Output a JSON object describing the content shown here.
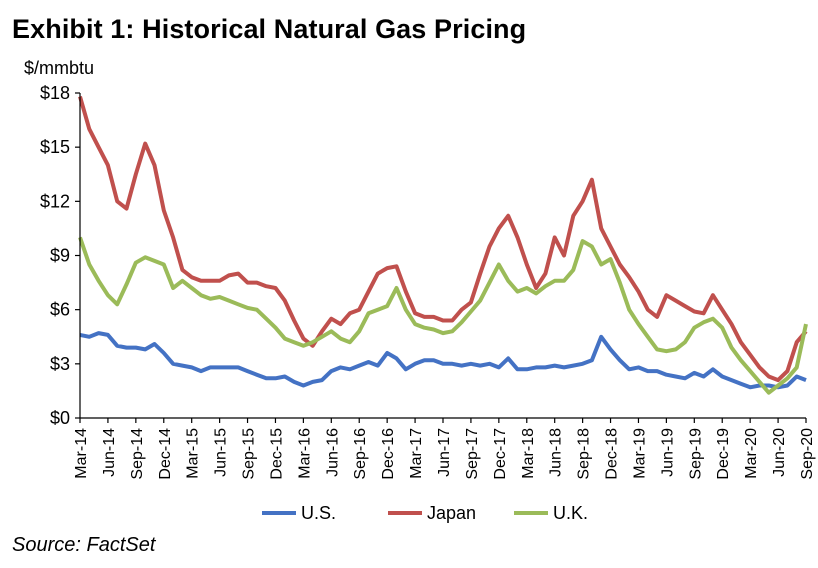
{
  "title": "Exhibit 1: Historical Natural Gas Pricing",
  "source": "Source: FactSet",
  "colors": {
    "us": "#4472C4",
    "japan": "#C0504D",
    "uk": "#9BBB59",
    "axis": "#000000"
  },
  "chart_data": {
    "type": "line",
    "title": "Exhibit 1: Historical Natural Gas Pricing",
    "ylabel": "$/mmbtu",
    "xlabel": "",
    "ylim": [
      0,
      18
    ],
    "yticks": [
      0,
      3,
      6,
      9,
      12,
      15,
      18
    ],
    "ytick_labels": [
      "$0",
      "$3",
      "$6",
      "$9",
      "$12",
      "$15",
      "$18"
    ],
    "xlim": [
      "2014-03",
      "2020-09"
    ],
    "xtick_labels": [
      "Mar-14",
      "Jun-14",
      "Sep-14",
      "Dec-14",
      "Mar-15",
      "Jun-15",
      "Sep-15",
      "Dec-15",
      "Mar-16",
      "Jun-16",
      "Sep-16",
      "Dec-16",
      "Mar-17",
      "Jun-17",
      "Sep-17",
      "Dec-17",
      "Mar-18",
      "Jun-18",
      "Sep-18",
      "Dec-18",
      "Mar-19",
      "Jun-19",
      "Sep-19",
      "Dec-19",
      "Mar-20",
      "Jun-20",
      "Sep-20"
    ],
    "grid": false,
    "legend": "bottom",
    "series": [
      {
        "name": "U.S.",
        "color": "#4472C4",
        "points": [
          [
            "2014-03",
            4.6
          ],
          [
            "2014-04",
            4.5
          ],
          [
            "2014-05",
            4.7
          ],
          [
            "2014-06",
            4.6
          ],
          [
            "2014-07",
            4.0
          ],
          [
            "2014-08",
            3.9
          ],
          [
            "2014-09",
            3.9
          ],
          [
            "2014-10",
            3.8
          ],
          [
            "2014-11",
            4.1
          ],
          [
            "2014-12",
            3.6
          ],
          [
            "2015-01",
            3.0
          ],
          [
            "2015-02",
            2.9
          ],
          [
            "2015-03",
            2.8
          ],
          [
            "2015-04",
            2.6
          ],
          [
            "2015-05",
            2.8
          ],
          [
            "2015-06",
            2.8
          ],
          [
            "2015-07",
            2.8
          ],
          [
            "2015-08",
            2.8
          ],
          [
            "2015-09",
            2.6
          ],
          [
            "2015-10",
            2.4
          ],
          [
            "2015-11",
            2.2
          ],
          [
            "2015-12",
            2.2
          ],
          [
            "2016-01",
            2.3
          ],
          [
            "2016-02",
            2.0
          ],
          [
            "2016-03",
            1.8
          ],
          [
            "2016-04",
            2.0
          ],
          [
            "2016-05",
            2.1
          ],
          [
            "2016-06",
            2.6
          ],
          [
            "2016-07",
            2.8
          ],
          [
            "2016-08",
            2.7
          ],
          [
            "2016-09",
            2.9
          ],
          [
            "2016-10",
            3.1
          ],
          [
            "2016-11",
            2.9
          ],
          [
            "2016-12",
            3.6
          ],
          [
            "2017-01",
            3.3
          ],
          [
            "2017-02",
            2.7
          ],
          [
            "2017-03",
            3.0
          ],
          [
            "2017-04",
            3.2
          ],
          [
            "2017-05",
            3.2
          ],
          [
            "2017-06",
            3.0
          ],
          [
            "2017-07",
            3.0
          ],
          [
            "2017-08",
            2.9
          ],
          [
            "2017-09",
            3.0
          ],
          [
            "2017-10",
            2.9
          ],
          [
            "2017-11",
            3.0
          ],
          [
            "2017-12",
            2.8
          ],
          [
            "2018-01",
            3.3
          ],
          [
            "2018-02",
            2.7
          ],
          [
            "2018-03",
            2.7
          ],
          [
            "2018-04",
            2.8
          ],
          [
            "2018-05",
            2.8
          ],
          [
            "2018-06",
            2.9
          ],
          [
            "2018-07",
            2.8
          ],
          [
            "2018-08",
            2.9
          ],
          [
            "2018-09",
            3.0
          ],
          [
            "2018-10",
            3.2
          ],
          [
            "2018-11",
            4.5
          ],
          [
            "2018-12",
            3.8
          ],
          [
            "2019-01",
            3.2
          ],
          [
            "2019-02",
            2.7
          ],
          [
            "2019-03",
            2.8
          ],
          [
            "2019-04",
            2.6
          ],
          [
            "2019-05",
            2.6
          ],
          [
            "2019-06",
            2.4
          ],
          [
            "2019-07",
            2.3
          ],
          [
            "2019-08",
            2.2
          ],
          [
            "2019-09",
            2.5
          ],
          [
            "2019-10",
            2.3
          ],
          [
            "2019-11",
            2.7
          ],
          [
            "2019-12",
            2.3
          ],
          [
            "2020-01",
            2.1
          ],
          [
            "2020-02",
            1.9
          ],
          [
            "2020-03",
            1.7
          ],
          [
            "2020-04",
            1.8
          ],
          [
            "2020-05",
            1.8
          ],
          [
            "2020-06",
            1.7
          ],
          [
            "2020-07",
            1.8
          ],
          [
            "2020-08",
            2.3
          ],
          [
            "2020-09",
            2.1
          ]
        ]
      },
      {
        "name": "Japan",
        "color": "#C0504D",
        "points": [
          [
            "2014-03",
            17.8
          ],
          [
            "2014-04",
            16.0
          ],
          [
            "2014-05",
            15.0
          ],
          [
            "2014-06",
            14.0
          ],
          [
            "2014-07",
            12.0
          ],
          [
            "2014-08",
            11.6
          ],
          [
            "2014-09",
            13.5
          ],
          [
            "2014-10",
            15.2
          ],
          [
            "2014-11",
            14.0
          ],
          [
            "2014-12",
            11.5
          ],
          [
            "2015-01",
            10.0
          ],
          [
            "2015-02",
            8.2
          ],
          [
            "2015-03",
            7.8
          ],
          [
            "2015-04",
            7.6
          ],
          [
            "2015-05",
            7.6
          ],
          [
            "2015-06",
            7.6
          ],
          [
            "2015-07",
            7.9
          ],
          [
            "2015-08",
            8.0
          ],
          [
            "2015-09",
            7.5
          ],
          [
            "2015-10",
            7.5
          ],
          [
            "2015-11",
            7.3
          ],
          [
            "2015-12",
            7.2
          ],
          [
            "2016-01",
            6.5
          ],
          [
            "2016-02",
            5.4
          ],
          [
            "2016-03",
            4.4
          ],
          [
            "2016-04",
            4.0
          ],
          [
            "2016-05",
            4.8
          ],
          [
            "2016-06",
            5.5
          ],
          [
            "2016-07",
            5.2
          ],
          [
            "2016-08",
            5.8
          ],
          [
            "2016-09",
            6.0
          ],
          [
            "2016-10",
            7.0
          ],
          [
            "2016-11",
            8.0
          ],
          [
            "2016-12",
            8.3
          ],
          [
            "2017-01",
            8.4
          ],
          [
            "2017-02",
            7.0
          ],
          [
            "2017-03",
            5.8
          ],
          [
            "2017-04",
            5.6
          ],
          [
            "2017-05",
            5.6
          ],
          [
            "2017-06",
            5.4
          ],
          [
            "2017-07",
            5.4
          ],
          [
            "2017-08",
            6.0
          ],
          [
            "2017-09",
            6.4
          ],
          [
            "2017-10",
            8.0
          ],
          [
            "2017-11",
            9.5
          ],
          [
            "2017-12",
            10.5
          ],
          [
            "2018-01",
            11.2
          ],
          [
            "2018-02",
            10.0
          ],
          [
            "2018-03",
            8.5
          ],
          [
            "2018-04",
            7.2
          ],
          [
            "2018-05",
            8.0
          ],
          [
            "2018-06",
            10.0
          ],
          [
            "2018-07",
            9.0
          ],
          [
            "2018-08",
            11.2
          ],
          [
            "2018-09",
            12.0
          ],
          [
            "2018-10",
            13.2
          ],
          [
            "2018-11",
            10.5
          ],
          [
            "2018-12",
            9.5
          ],
          [
            "2019-01",
            8.5
          ],
          [
            "2019-02",
            7.8
          ],
          [
            "2019-03",
            7.0
          ],
          [
            "2019-04",
            6.0
          ],
          [
            "2019-05",
            5.6
          ],
          [
            "2019-06",
            6.8
          ],
          [
            "2019-07",
            6.5
          ],
          [
            "2019-08",
            6.2
          ],
          [
            "2019-09",
            5.9
          ],
          [
            "2019-10",
            5.8
          ],
          [
            "2019-11",
            6.8
          ],
          [
            "2019-12",
            6.0
          ],
          [
            "2020-01",
            5.2
          ],
          [
            "2020-02",
            4.2
          ],
          [
            "2020-03",
            3.5
          ],
          [
            "2020-04",
            2.8
          ],
          [
            "2020-05",
            2.3
          ],
          [
            "2020-06",
            2.1
          ],
          [
            "2020-07",
            2.6
          ],
          [
            "2020-08",
            4.2
          ],
          [
            "2020-09",
            4.8
          ]
        ]
      },
      {
        "name": "U.K.",
        "color": "#9BBB59",
        "points": [
          [
            "2014-03",
            10.0
          ],
          [
            "2014-04",
            8.5
          ],
          [
            "2014-05",
            7.6
          ],
          [
            "2014-06",
            6.8
          ],
          [
            "2014-07",
            6.3
          ],
          [
            "2014-08",
            7.4
          ],
          [
            "2014-09",
            8.6
          ],
          [
            "2014-10",
            8.9
          ],
          [
            "2014-11",
            8.7
          ],
          [
            "2014-12",
            8.5
          ],
          [
            "2015-01",
            7.2
          ],
          [
            "2015-02",
            7.6
          ],
          [
            "2015-03",
            7.2
          ],
          [
            "2015-04",
            6.8
          ],
          [
            "2015-05",
            6.6
          ],
          [
            "2015-06",
            6.7
          ],
          [
            "2015-07",
            6.5
          ],
          [
            "2015-08",
            6.3
          ],
          [
            "2015-09",
            6.1
          ],
          [
            "2015-10",
            6.0
          ],
          [
            "2015-11",
            5.5
          ],
          [
            "2015-12",
            5.0
          ],
          [
            "2016-01",
            4.4
          ],
          [
            "2016-02",
            4.2
          ],
          [
            "2016-03",
            4.0
          ],
          [
            "2016-04",
            4.2
          ],
          [
            "2016-05",
            4.5
          ],
          [
            "2016-06",
            4.8
          ],
          [
            "2016-07",
            4.4
          ],
          [
            "2016-08",
            4.2
          ],
          [
            "2016-09",
            4.8
          ],
          [
            "2016-10",
            5.8
          ],
          [
            "2016-11",
            6.0
          ],
          [
            "2016-12",
            6.2
          ],
          [
            "2017-01",
            7.2
          ],
          [
            "2017-02",
            6.0
          ],
          [
            "2017-03",
            5.2
          ],
          [
            "2017-04",
            5.0
          ],
          [
            "2017-05",
            4.9
          ],
          [
            "2017-06",
            4.7
          ],
          [
            "2017-07",
            4.8
          ],
          [
            "2017-08",
            5.3
          ],
          [
            "2017-09",
            5.9
          ],
          [
            "2017-10",
            6.5
          ],
          [
            "2017-11",
            7.5
          ],
          [
            "2017-12",
            8.5
          ],
          [
            "2018-01",
            7.6
          ],
          [
            "2018-02",
            7.0
          ],
          [
            "2018-03",
            7.2
          ],
          [
            "2018-04",
            6.9
          ],
          [
            "2018-05",
            7.3
          ],
          [
            "2018-06",
            7.6
          ],
          [
            "2018-07",
            7.6
          ],
          [
            "2018-08",
            8.2
          ],
          [
            "2018-09",
            9.8
          ],
          [
            "2018-10",
            9.5
          ],
          [
            "2018-11",
            8.5
          ],
          [
            "2018-12",
            8.8
          ],
          [
            "2019-01",
            7.5
          ],
          [
            "2019-02",
            6.0
          ],
          [
            "2019-03",
            5.2
          ],
          [
            "2019-04",
            4.5
          ],
          [
            "2019-05",
            3.8
          ],
          [
            "2019-06",
            3.7
          ],
          [
            "2019-07",
            3.8
          ],
          [
            "2019-08",
            4.2
          ],
          [
            "2019-09",
            5.0
          ],
          [
            "2019-10",
            5.3
          ],
          [
            "2019-11",
            5.5
          ],
          [
            "2019-12",
            5.0
          ],
          [
            "2020-01",
            3.9
          ],
          [
            "2020-02",
            3.2
          ],
          [
            "2020-03",
            2.6
          ],
          [
            "2020-04",
            2.0
          ],
          [
            "2020-05",
            1.4
          ],
          [
            "2020-06",
            1.8
          ],
          [
            "2020-07",
            2.2
          ],
          [
            "2020-08",
            2.8
          ],
          [
            "2020-09",
            5.2
          ]
        ]
      }
    ]
  }
}
